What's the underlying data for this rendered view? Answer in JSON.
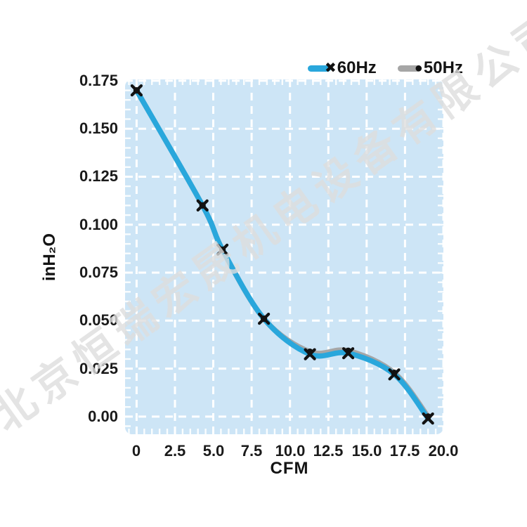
{
  "watermark": {
    "text": "北京恒瑞宏晟机电设备有限公司"
  },
  "legend": [
    {
      "label": "60Hz",
      "marker_glyph": "✖",
      "color": "#29a7dc"
    },
    {
      "label": "50Hz",
      "marker_glyph": "●",
      "color": "#a6a6a6"
    }
  ],
  "colors": {
    "curve_60hz": "#29a7dc",
    "curve_50hz": "#a6a6a6",
    "plot_background": "#cde5f6",
    "gridline": "#ffffff",
    "marker": "#121212",
    "watermark_gray": "#dddddd"
  },
  "chart_data": {
    "type": "line",
    "title": "",
    "xlabel": "CFM",
    "ylabel": "inH₂O",
    "grid": true,
    "legend_position": "top-right",
    "xlim": [
      -0.75,
      20.0
    ],
    "ylim": [
      -0.0092,
      0.1757
    ],
    "x_ticks": [
      0,
      2.5,
      5,
      7.5,
      10,
      12.5,
      15,
      17.5,
      20
    ],
    "x_tick_labels": [
      "0",
      "2.5",
      "5.0",
      "7.5",
      "10.0",
      "12.5",
      "15.0",
      "17.5",
      "20.0"
    ],
    "y_ticks": [
      0.175,
      0.15,
      0.125,
      0.1,
      0.075,
      0.05,
      0.025,
      0
    ],
    "y_tick_labels": [
      "0.175",
      "0.150",
      "0.125",
      "0.100",
      "0.075",
      "0.050",
      "0.025",
      "0.00"
    ],
    "minor_tick_step_x": 0.5,
    "minor_tick_step_y": 0.005,
    "series": [
      {
        "name": "50Hz",
        "color": "#a6a6a6",
        "marker": "dot",
        "points": [
          [
            0,
            0.17
          ],
          [
            4.3,
            0.11
          ],
          [
            5.6,
            0.087
          ],
          [
            8.3,
            0.051
          ],
          [
            11.3,
            0.0338
          ],
          [
            13.8,
            0.0343
          ],
          [
            16.8,
            0.0228
          ],
          [
            19.0,
            0.0
          ]
        ]
      },
      {
        "name": "60Hz",
        "color": "#29a7dc",
        "marker": "x",
        "points": [
          [
            0,
            0.17
          ],
          [
            4.3,
            0.11
          ],
          [
            5.6,
            0.087
          ],
          [
            8.3,
            0.051
          ],
          [
            11.3,
            0.0325
          ],
          [
            13.8,
            0.033
          ],
          [
            16.8,
            0.022
          ],
          [
            19.0,
            -0.001
          ]
        ]
      }
    ]
  }
}
